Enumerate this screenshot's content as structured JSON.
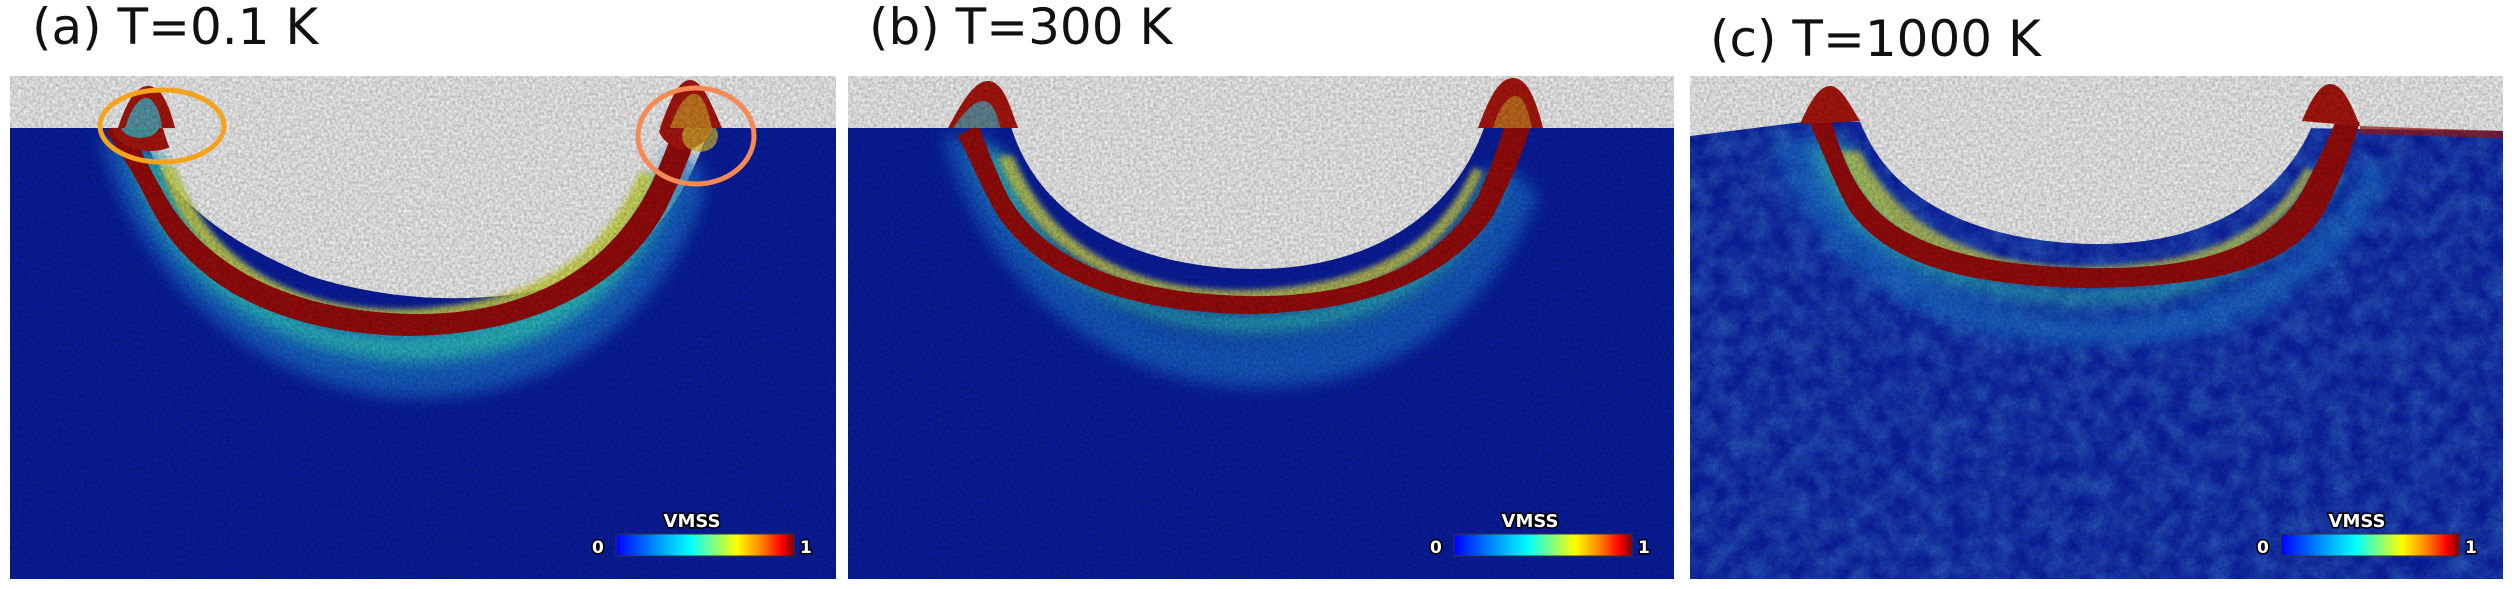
{
  "panels": [
    {
      "title": "(a) T=0.1 K",
      "colorbar": {
        "label": "VMSS",
        "min": "0",
        "max": "1"
      },
      "annotations": [
        {
          "shape": "ellipse",
          "color": "#f5a21c"
        },
        {
          "shape": "ellipse",
          "color": "#f58a55"
        }
      ]
    },
    {
      "title": "(b) T=300 K",
      "colorbar": {
        "label": "VMSS",
        "min": "0",
        "max": "1"
      },
      "annotations": []
    },
    {
      "title": "(c) T=1000 K",
      "colorbar": {
        "label": "VMSS",
        "min": "0",
        "max": "1"
      },
      "annotations": []
    }
  ],
  "colormap": [
    "#00007f",
    "#0000ff",
    "#00a0ff",
    "#00ffff",
    "#80ff80",
    "#ffff00",
    "#ff8000",
    "#ff0000",
    "#800000"
  ]
}
